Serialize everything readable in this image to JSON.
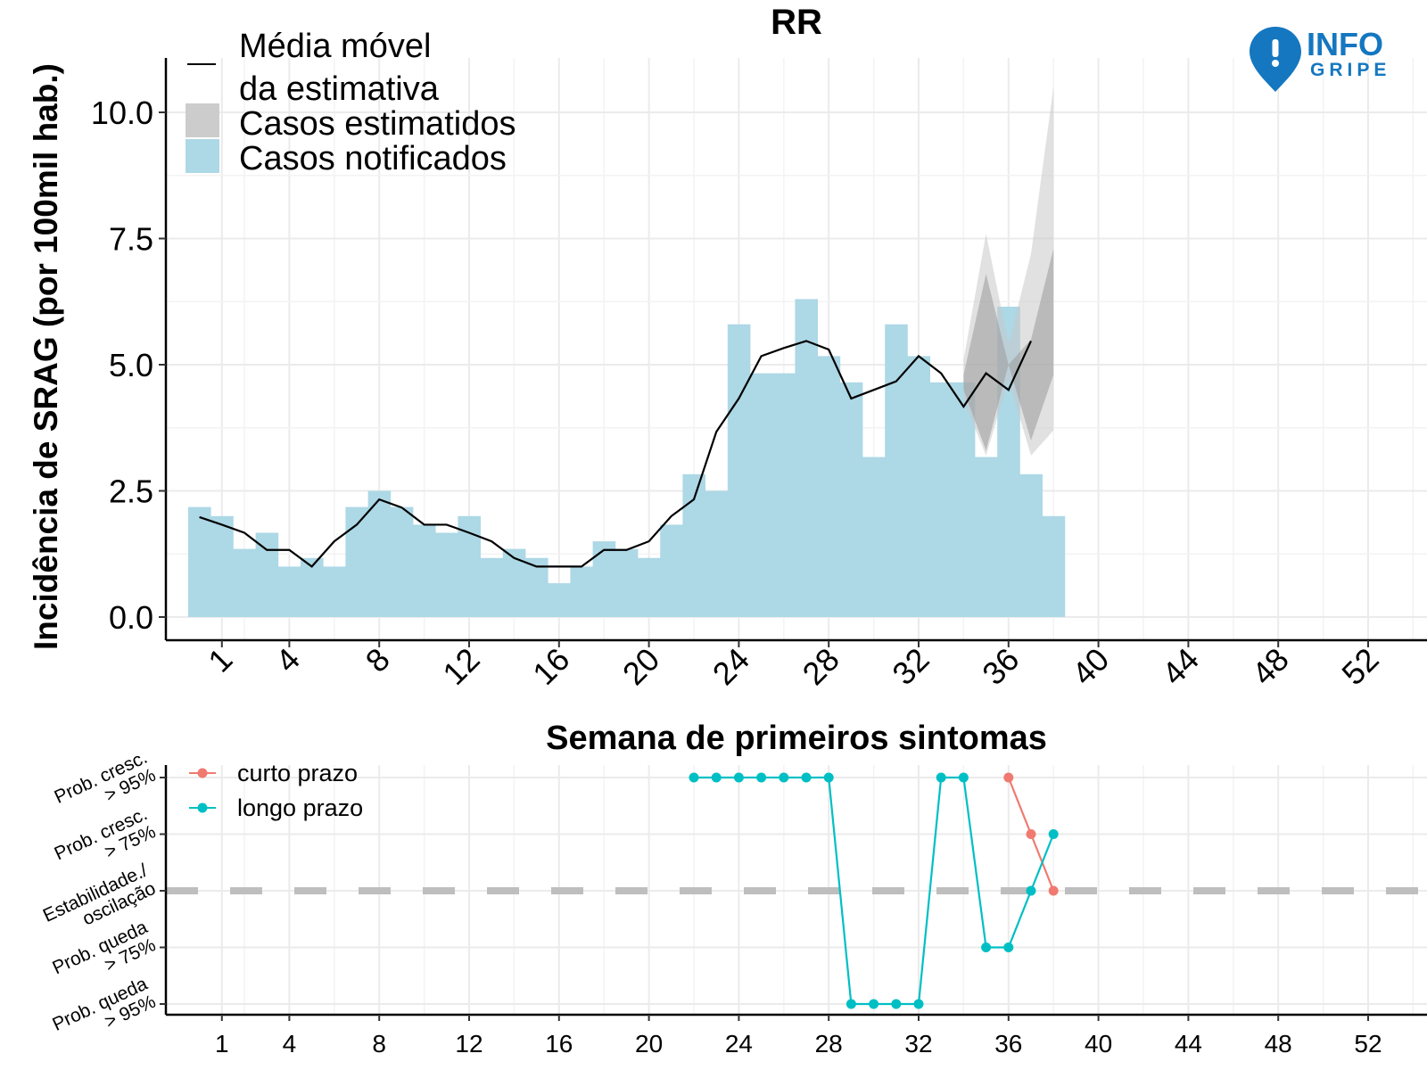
{
  "brand": {
    "logo_line1": "INFO",
    "logo_line2": "GRIPE",
    "color": "#1577c0"
  },
  "chart_data": [
    {
      "type": "bar",
      "title": "RR",
      "xlabel": "Semana de primeiros sintomas",
      "ylabel": "Incidência de SRAG (por 100mil hab.)",
      "xlim": [
        -1,
        54
      ],
      "ylim": [
        0,
        11
      ],
      "x_ticks": [
        1,
        4,
        8,
        12,
        16,
        20,
        24,
        28,
        32,
        36,
        40,
        44,
        48,
        52
      ],
      "y_ticks": [
        0.0,
        2.5,
        5.0,
        7.5,
        10.0
      ],
      "y_tick_labels": [
        "0.0",
        "2.5",
        "5.0",
        "7.5",
        "10.0"
      ],
      "grid": true,
      "legend": {
        "position": "top-left",
        "entries": [
          {
            "label_line1": "Média móvel",
            "label_line2": "da estimativa",
            "kind": "line",
            "color": "#000000"
          },
          {
            "label": "Casos estimatidos",
            "kind": "area",
            "color": "#d3d3d3"
          },
          {
            "label": "Casos notificados",
            "kind": "bar",
            "color": "#add8e6"
          }
        ]
      },
      "bars": {
        "name": "Casos notificados",
        "color": "#add8e6",
        "weeks": [
          0,
          1,
          2,
          3,
          4,
          5,
          6,
          7,
          8,
          9,
          10,
          11,
          12,
          13,
          14,
          15,
          16,
          17,
          18,
          19,
          20,
          21,
          22,
          23,
          24,
          25,
          26,
          27,
          28,
          29,
          30,
          31,
          32,
          33,
          34,
          35,
          36,
          37,
          38
        ],
        "values": [
          2.18,
          2.0,
          1.35,
          1.67,
          1.0,
          1.17,
          1.0,
          2.18,
          2.5,
          2.18,
          1.83,
          1.67,
          2.0,
          1.17,
          1.35,
          1.17,
          0.67,
          1.0,
          1.5,
          1.35,
          1.17,
          1.83,
          2.83,
          2.5,
          5.8,
          4.83,
          4.83,
          6.3,
          5.17,
          4.65,
          3.17,
          5.8,
          5.17,
          4.65,
          4.65,
          3.17,
          6.15,
          2.83,
          2.0
        ]
      },
      "moving_average": {
        "name": "Média móvel da estimativa",
        "color": "#000000",
        "weeks": [
          0,
          1,
          2,
          3,
          4,
          5,
          6,
          7,
          8,
          9,
          10,
          11,
          12,
          13,
          14,
          15,
          16,
          17,
          18,
          19,
          20,
          21,
          22,
          23,
          24,
          25,
          26,
          27,
          28,
          29,
          30,
          31,
          32,
          33,
          34,
          35,
          36,
          37
        ],
        "values": [
          1.98,
          1.83,
          1.67,
          1.33,
          1.33,
          1.0,
          1.5,
          1.83,
          2.33,
          2.17,
          1.83,
          1.83,
          1.67,
          1.5,
          1.17,
          1.0,
          1.0,
          1.0,
          1.33,
          1.33,
          1.5,
          2.0,
          2.33,
          3.67,
          4.33,
          5.17,
          5.33,
          5.47,
          5.3,
          4.33,
          4.5,
          4.67,
          5.17,
          4.83,
          4.17,
          4.83,
          4.5,
          5.47
        ]
      },
      "estimate_band": {
        "name": "Casos estimatidos",
        "color": "#d3d3d3",
        "weeks": [
          34,
          35,
          36,
          37,
          38
        ],
        "inner_lower": [
          4.5,
          3.3,
          5.0,
          3.5,
          4.8
        ],
        "inner_upper": [
          4.8,
          6.8,
          5.0,
          5.5,
          7.3
        ],
        "outer_lower": [
          4.3,
          3.2,
          4.7,
          3.2,
          3.7
        ],
        "outer_upper": [
          5.1,
          7.6,
          5.4,
          7.2,
          10.5
        ]
      }
    },
    {
      "type": "line",
      "title": "",
      "xlim": [
        -1,
        54
      ],
      "x_ticks": [
        1,
        4,
        8,
        12,
        16,
        20,
        24,
        28,
        32,
        36,
        40,
        44,
        48,
        52
      ],
      "y_categories": [
        [
          "Prob. queda",
          "> 95%"
        ],
        [
          "Prob. queda",
          "> 75%"
        ],
        [
          "Estabilidade./",
          "oscilação"
        ],
        [
          "Prob. cresc.",
          "> 75%"
        ],
        [
          "Prob. cresc.",
          "> 95%"
        ]
      ],
      "y_values_range": [
        -2,
        2
      ],
      "reference_line": {
        "y": 0,
        "style": "dashed",
        "color": "#bebebe"
      },
      "legend": {
        "position": "top-left"
      },
      "series": [
        {
          "name": "curto prazo",
          "color": "#f07a70",
          "weeks": [
            36,
            37,
            38
          ],
          "values": [
            2,
            1,
            0
          ]
        },
        {
          "name": "longo prazo",
          "color": "#00bfc4",
          "weeks": [
            22,
            23,
            24,
            25,
            26,
            27,
            28,
            29,
            30,
            31,
            32,
            33,
            34,
            35,
            36,
            37,
            38
          ],
          "values": [
            2,
            2,
            2,
            2,
            2,
            2,
            2,
            -2,
            -2,
            -2,
            -2,
            2,
            2,
            -1,
            -1,
            0,
            1
          ]
        }
      ]
    }
  ]
}
